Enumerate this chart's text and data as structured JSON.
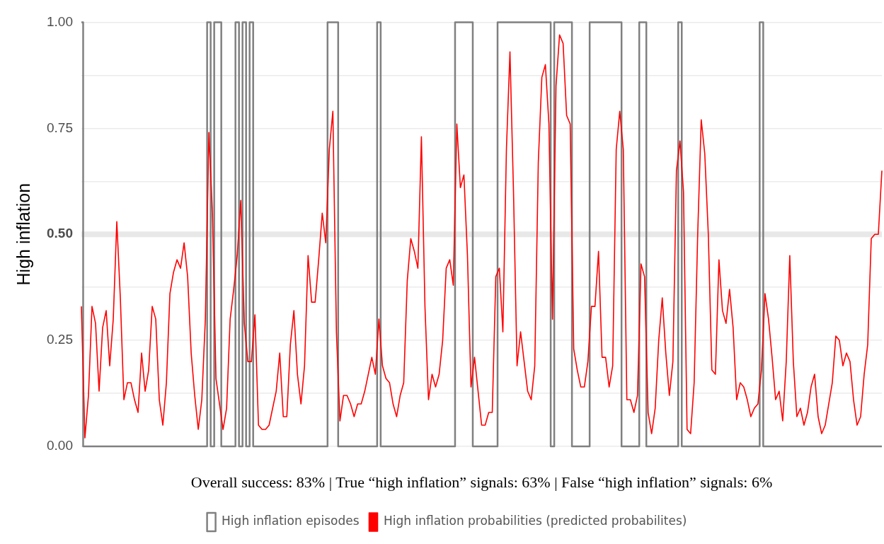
{
  "chart_data": {
    "type": "line",
    "ylabel": "High inflation",
    "categories": [
      null,
      null,
      null,
      null,
      null,
      null,
      null,
      null,
      null,
      null,
      null,
      null,
      null,
      null,
      null,
      null,
      null,
      null,
      null,
      null,
      null,
      null,
      null,
      null,
      null,
      null,
      null,
      null,
      null,
      null,
      null,
      null,
      null,
      null,
      null,
      null,
      null,
      null,
      null,
      null,
      null,
      null,
      null,
      null,
      null,
      null,
      null,
      null,
      null,
      null,
      null,
      null,
      null,
      null,
      null,
      null,
      null,
      null,
      null,
      null,
      null,
      null,
      null,
      null,
      null,
      null,
      null,
      null,
      null,
      null,
      null,
      null,
      null,
      null,
      null,
      null,
      null,
      null,
      null,
      null,
      null,
      null,
      null,
      null,
      null,
      null,
      null,
      null,
      null,
      null,
      null,
      null,
      null,
      null,
      null,
      null,
      null,
      null,
      null,
      null,
      null,
      null,
      null,
      null,
      null,
      null,
      null,
      null,
      null,
      null,
      null,
      null,
      null,
      null,
      null,
      null,
      null,
      null,
      null,
      null,
      null,
      null,
      null,
      null,
      null,
      null,
      null,
      null,
      null,
      null,
      null,
      null,
      null,
      null,
      null,
      null,
      null,
      null,
      null,
      null,
      null,
      null,
      null,
      null,
      null,
      null,
      null,
      null,
      null,
      null,
      null,
      null,
      null,
      null,
      null,
      null,
      null,
      null,
      null,
      null,
      null,
      null,
      null,
      null,
      null,
      null,
      null,
      null,
      null,
      null,
      null,
      null,
      null,
      null,
      null,
      null,
      null,
      null,
      null,
      null,
      null,
      null,
      null,
      null,
      null,
      null,
      null,
      null,
      null,
      null,
      null,
      null,
      null,
      null,
      null,
      null,
      null,
      null,
      null,
      null,
      null,
      null,
      null,
      null,
      null,
      null,
      null,
      null,
      null,
      null,
      null,
      null,
      null,
      null,
      null,
      null,
      null,
      null,
      null,
      null,
      null,
      null,
      null,
      null,
      null,
      null,
      null
    ],
    "series": [
      {
        "name": "High inflation episodes",
        "type": "step",
        "color": "#808080",
        "values": [
          1,
          0,
          0,
          0,
          0,
          0,
          0,
          0,
          0,
          0,
          0,
          0,
          0,
          0,
          0,
          0,
          0,
          0,
          0,
          0,
          0,
          0,
          0,
          0,
          0,
          0,
          0,
          0,
          0,
          0,
          0,
          0,
          0,
          0,
          0,
          0,
          1,
          0,
          1,
          1,
          0,
          0,
          0,
          0,
          1,
          0,
          1,
          0,
          1,
          0,
          0,
          0,
          0,
          0,
          0,
          0,
          0,
          0,
          0,
          0,
          0,
          0,
          0,
          0,
          0,
          0,
          0,
          0,
          0,
          0,
          1,
          1,
          1,
          0,
          0,
          0,
          0,
          0,
          0,
          0,
          0,
          0,
          0,
          0,
          1,
          0,
          0,
          0,
          0,
          0,
          0,
          0,
          0,
          0,
          0,
          0,
          0,
          0,
          0,
          0,
          0,
          0,
          0,
          0,
          0,
          0,
          1,
          1,
          1,
          1,
          1,
          0,
          0,
          0,
          0,
          0,
          0,
          0,
          1,
          1,
          1,
          1,
          1,
          1,
          1,
          1,
          1,
          1,
          1,
          1,
          1,
          1,
          1,
          0,
          1,
          1,
          1,
          1,
          1,
          0,
          0,
          0,
          0,
          0,
          1,
          1,
          1,
          1,
          1,
          1,
          1,
          1,
          1,
          0,
          0,
          0,
          0,
          0,
          1,
          1,
          0,
          0,
          0,
          0,
          0,
          0,
          0,
          0,
          0,
          1,
          0,
          0,
          0,
          0,
          0,
          0,
          0,
          0,
          0,
          0,
          0,
          0,
          0,
          0,
          0,
          0,
          0,
          0,
          0,
          0,
          0,
          0,
          1,
          0,
          0,
          0,
          0,
          0,
          0,
          0,
          0,
          0,
          0,
          0,
          0,
          0,
          0,
          0,
          0,
          0,
          0,
          0,
          0,
          0,
          0,
          0,
          0,
          0,
          0,
          0,
          0,
          0,
          0,
          0,
          0,
          0,
          0
        ]
      },
      {
        "name": "High inflation probabilities (predicted probabilites)",
        "type": "line",
        "color": "#ff0000",
        "values": [
          0.33,
          0.02,
          0.12,
          0.33,
          0.29,
          0.13,
          0.28,
          0.32,
          0.19,
          0.3,
          0.53,
          0.35,
          0.11,
          0.15,
          0.15,
          0.11,
          0.08,
          0.22,
          0.13,
          0.18,
          0.33,
          0.3,
          0.11,
          0.05,
          0.15,
          0.36,
          0.41,
          0.44,
          0.42,
          0.48,
          0.4,
          0.22,
          0.12,
          0.04,
          0.11,
          0.3,
          0.74,
          0.55,
          0.16,
          0.1,
          0.04,
          0.09,
          0.3,
          0.37,
          0.45,
          0.58,
          0.29,
          0.2,
          0.2,
          0.31,
          0.05,
          0.04,
          0.04,
          0.05,
          0.09,
          0.13,
          0.22,
          0.07,
          0.07,
          0.24,
          0.32,
          0.17,
          0.1,
          0.19,
          0.45,
          0.34,
          0.34,
          0.44,
          0.55,
          0.48,
          0.7,
          0.79,
          0.27,
          0.06,
          0.12,
          0.12,
          0.1,
          0.07,
          0.1,
          0.1,
          0.13,
          0.17,
          0.21,
          0.17,
          0.3,
          0.19,
          0.16,
          0.15,
          0.1,
          0.07,
          0.12,
          0.15,
          0.39,
          0.49,
          0.46,
          0.42,
          0.73,
          0.33,
          0.11,
          0.17,
          0.14,
          0.17,
          0.25,
          0.42,
          0.44,
          0.38,
          0.76,
          0.61,
          0.64,
          0.45,
          0.14,
          0.21,
          0.13,
          0.05,
          0.05,
          0.08,
          0.08,
          0.4,
          0.42,
          0.27,
          0.7,
          0.93,
          0.6,
          0.19,
          0.27,
          0.2,
          0.13,
          0.11,
          0.19,
          0.67,
          0.87,
          0.9,
          0.76,
          0.3,
          0.85,
          0.97,
          0.95,
          0.78,
          0.76,
          0.23,
          0.18,
          0.14,
          0.14,
          0.2,
          0.33,
          0.33,
          0.46,
          0.21,
          0.21,
          0.14,
          0.19,
          0.7,
          0.79,
          0.7,
          0.11,
          0.11,
          0.08,
          0.12,
          0.43,
          0.4,
          0.08,
          0.03,
          0.09,
          0.25,
          0.35,
          0.22,
          0.12,
          0.2,
          0.65,
          0.72,
          0.6,
          0.04,
          0.03,
          0.15,
          0.5,
          0.77,
          0.69,
          0.5,
          0.18,
          0.17,
          0.44,
          0.32,
          0.29,
          0.37,
          0.28,
          0.11,
          0.15,
          0.14,
          0.11,
          0.07,
          0.09,
          0.1,
          0.18,
          0.36,
          0.3,
          0.21,
          0.11,
          0.13,
          0.06,
          0.2,
          0.45,
          0.2,
          0.07,
          0.09,
          0.05,
          0.08,
          0.14,
          0.17,
          0.07,
          0.03,
          0.05,
          0.1,
          0.15,
          0.26,
          0.25,
          0.19,
          0.22,
          0.2,
          0.11,
          0.05,
          0.07,
          0.17,
          0.24,
          0.49,
          0.5,
          0.5,
          0.65
        ]
      }
    ],
    "ylim": [
      0,
      1
    ],
    "yticks": [
      {
        "value": 0,
        "label": "0.00"
      },
      {
        "value": 0.125,
        "label": null
      },
      {
        "value": 0.25,
        "label": "0.25"
      },
      {
        "value": 0.375,
        "label": null
      },
      {
        "value": 0.5,
        "label": "0.50"
      },
      {
        "value": 0.625,
        "label": null
      },
      {
        "value": 0.75,
        "label": "0.75"
      },
      {
        "value": 0.875,
        "label": null
      },
      {
        "value": 1,
        "label": "1.00"
      }
    ],
    "grid": "y",
    "ref_lines": [
      {
        "axis": "y",
        "value": 0.5,
        "color": "#e8e8e8"
      }
    ],
    "annotations": [
      "Overall success: 83% | True “high inflation” signals: 63% | False “high inflation” signals: 6%"
    ],
    "legend": "bottom"
  }
}
